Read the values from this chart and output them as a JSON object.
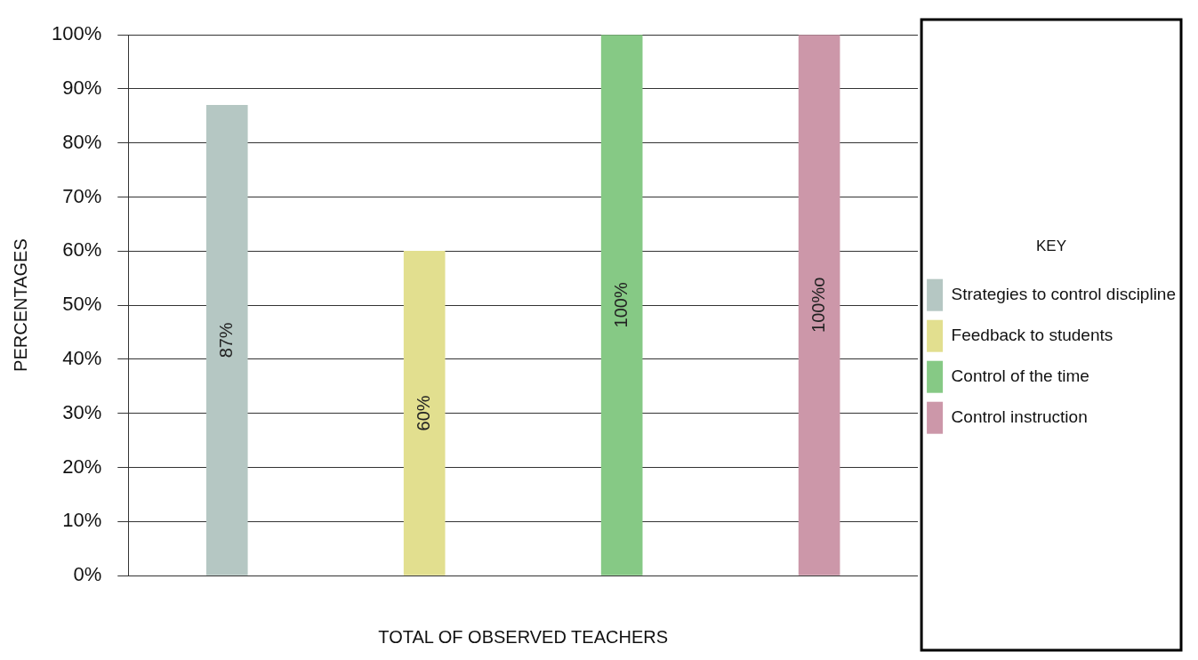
{
  "chart_data": {
    "type": "bar",
    "xlabel": "TOTAL OF OBSERVED TEACHERS",
    "ylabel": "PERCENTAGES",
    "legend_title": "KEY",
    "legend": "right",
    "grid": "y",
    "categories": [
      null,
      null,
      null,
      null
    ],
    "ylim": [
      0,
      100
    ],
    "yticks": [
      {
        "value": 0,
        "label": "0%"
      },
      {
        "value": 10,
        "label": "10%"
      },
      {
        "value": 20,
        "label": "20%"
      },
      {
        "value": 30,
        "label": "30%"
      },
      {
        "value": 40,
        "label": "40%"
      },
      {
        "value": 50,
        "label": "50%"
      },
      {
        "value": 60,
        "label": "60%"
      },
      {
        "value": 70,
        "label": "70%"
      },
      {
        "value": 80,
        "label": "80%"
      },
      {
        "value": 90,
        "label": "90%"
      },
      {
        "value": 100,
        "label": "100%"
      }
    ],
    "series": [
      {
        "name": "Strategies to control discipline",
        "color": "#b5c7c3",
        "values": [
          87,
          null,
          null,
          null
        ],
        "value_labels": [
          "87%",
          null,
          null,
          null
        ]
      },
      {
        "name": "Feedback to students",
        "color": "#e2df8f",
        "values": [
          null,
          60,
          null,
          null
        ],
        "value_labels": [
          null,
          "60%",
          null,
          null
        ]
      },
      {
        "name": "Control of the time",
        "color": "#86c985",
        "values": [
          null,
          null,
          100,
          null
        ],
        "value_labels": [
          null,
          null,
          "100%",
          null
        ]
      },
      {
        "name": "Control instruction",
        "color": "#cc97a9",
        "values": [
          null,
          null,
          null,
          100
        ],
        "value_labels": [
          null,
          null,
          null,
          "100%o"
        ]
      }
    ]
  }
}
